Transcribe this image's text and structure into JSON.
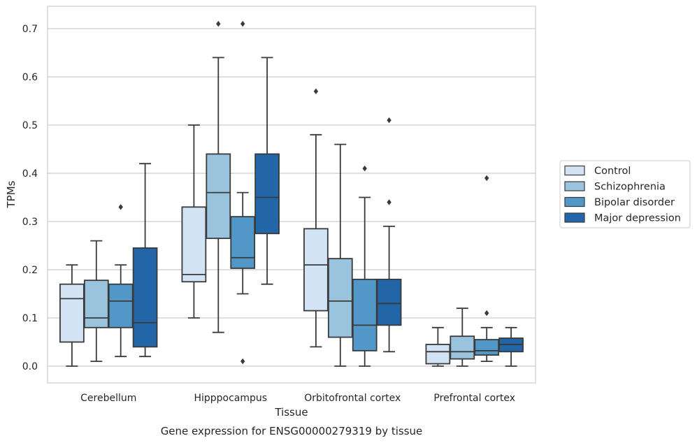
{
  "chart_data": {
    "type": "box",
    "title": "",
    "xlabel": "Tissue",
    "ylabel": "TPMs",
    "caption": "Gene expression for ENSG00000279319 by tissue",
    "ylim": [
      -0.035,
      0.745
    ],
    "yticks": [
      0.0,
      0.1,
      0.2,
      0.3,
      0.4,
      0.5,
      0.6,
      0.7
    ],
    "ytick_labels": [
      "0.0",
      "0.1",
      "0.2",
      "0.3",
      "0.4",
      "0.5",
      "0.6",
      "0.7"
    ],
    "grid": true,
    "legend_position": "right",
    "categories": [
      "Cerebellum",
      "Hipppocampus",
      "Orbitofrontal cortex",
      "Prefrontal cortex"
    ],
    "series": [
      {
        "name": "Control",
        "color": "#d2e3f3",
        "boxes": [
          {
            "whislo": 0.0,
            "q1": 0.05,
            "med": 0.14,
            "q3": 0.17,
            "whishi": 0.21,
            "fliers": []
          },
          {
            "whislo": 0.1,
            "q1": 0.175,
            "med": 0.19,
            "q3": 0.33,
            "whishi": 0.5,
            "fliers": []
          },
          {
            "whislo": 0.04,
            "q1": 0.115,
            "med": 0.21,
            "q3": 0.285,
            "whishi": 0.48,
            "fliers": [
              0.57
            ]
          },
          {
            "whislo": 0.0,
            "q1": 0.005,
            "med": 0.03,
            "q3": 0.045,
            "whishi": 0.08,
            "fliers": []
          }
        ]
      },
      {
        "name": "Schizophrenia",
        "color": "#9ac4de",
        "boxes": [
          {
            "whislo": 0.01,
            "q1": 0.08,
            "med": 0.1,
            "q3": 0.178,
            "whishi": 0.26,
            "fliers": []
          },
          {
            "whislo": 0.07,
            "q1": 0.265,
            "med": 0.36,
            "q3": 0.44,
            "whishi": 0.64,
            "fliers": [
              0.71
            ]
          },
          {
            "whislo": 0.0,
            "q1": 0.06,
            "med": 0.135,
            "q3": 0.223,
            "whishi": 0.46,
            "fliers": []
          },
          {
            "whislo": 0.0,
            "q1": 0.015,
            "med": 0.03,
            "q3": 0.062,
            "whishi": 0.12,
            "fliers": []
          }
        ]
      },
      {
        "name": "Bipolar disorder",
        "color": "#5197c7",
        "boxes": [
          {
            "whislo": 0.02,
            "q1": 0.08,
            "med": 0.135,
            "q3": 0.17,
            "whishi": 0.21,
            "fliers": [
              0.33
            ]
          },
          {
            "whislo": 0.15,
            "q1": 0.203,
            "med": 0.225,
            "q3": 0.31,
            "whishi": 0.36,
            "fliers": [
              0.71,
              0.01
            ]
          },
          {
            "whislo": 0.0,
            "q1": 0.032,
            "med": 0.085,
            "q3": 0.18,
            "whishi": 0.35,
            "fliers": [
              0.41
            ]
          },
          {
            "whislo": 0.01,
            "q1": 0.023,
            "med": 0.032,
            "q3": 0.055,
            "whishi": 0.08,
            "fliers": [
              0.11,
              0.39
            ]
          }
        ]
      },
      {
        "name": "Major depression",
        "color": "#2266a8",
        "boxes": [
          {
            "whislo": 0.02,
            "q1": 0.04,
            "med": 0.09,
            "q3": 0.245,
            "whishi": 0.42,
            "fliers": []
          },
          {
            "whislo": 0.17,
            "q1": 0.275,
            "med": 0.35,
            "q3": 0.44,
            "whishi": 0.64,
            "fliers": []
          },
          {
            "whislo": 0.03,
            "q1": 0.085,
            "med": 0.13,
            "q3": 0.18,
            "whishi": 0.29,
            "fliers": [
              0.34,
              0.51
            ]
          },
          {
            "whislo": 0.0,
            "q1": 0.03,
            "med": 0.045,
            "q3": 0.058,
            "whishi": 0.08,
            "fliers": []
          }
        ]
      }
    ],
    "styles": {
      "edge_color": "#3a3a3a",
      "grid_color": "#cccccc",
      "frame_color": "#cccccc",
      "text_color": "#262626"
    }
  }
}
